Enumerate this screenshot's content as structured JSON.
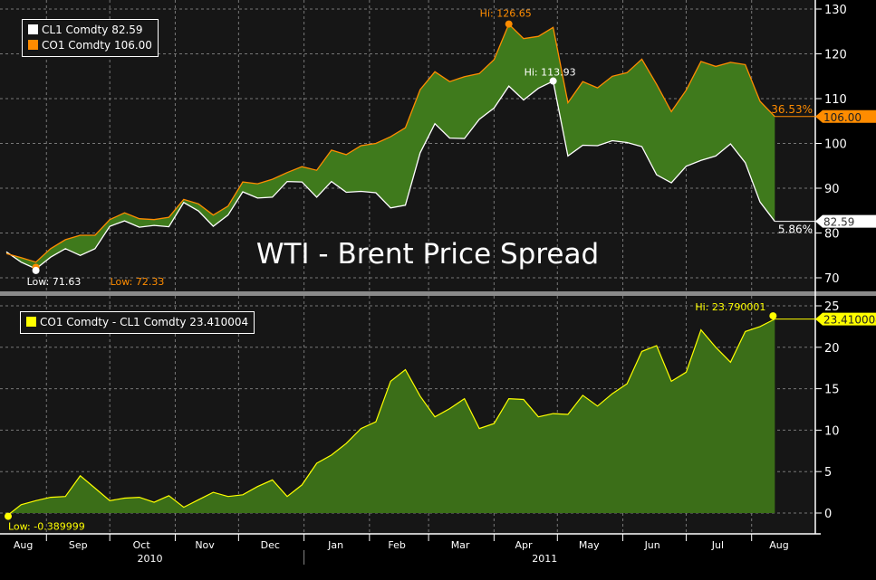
{
  "chart_data": [
    {
      "type": "area",
      "title": "WTI - Brent Price Spread",
      "legend_position": "top-left",
      "yaxis_side": "right",
      "ylim": [
        68,
        132
      ],
      "yticks": [
        70,
        80,
        90,
        100,
        110,
        120,
        130
      ],
      "grid": true,
      "x": [
        "2010-08-13",
        "2010-08-20",
        "2010-08-27",
        "2010-09-03",
        "2010-09-10",
        "2010-09-17",
        "2010-09-24",
        "2010-10-01",
        "2010-10-08",
        "2010-10-15",
        "2010-10-22",
        "2010-10-29",
        "2010-11-05",
        "2010-11-12",
        "2010-11-19",
        "2010-11-26",
        "2010-12-03",
        "2010-12-10",
        "2010-12-17",
        "2010-12-24",
        "2010-12-31",
        "2011-01-07",
        "2011-01-14",
        "2011-01-21",
        "2011-01-28",
        "2011-02-04",
        "2011-02-11",
        "2011-02-18",
        "2011-02-25",
        "2011-03-04",
        "2011-03-11",
        "2011-03-18",
        "2011-03-25",
        "2011-04-01",
        "2011-04-08",
        "2011-04-15",
        "2011-04-22",
        "2011-04-29",
        "2011-05-06",
        "2011-05-13",
        "2011-05-20",
        "2011-05-27",
        "2011-06-03",
        "2011-06-10",
        "2011-06-17",
        "2011-06-24",
        "2011-07-01",
        "2011-07-08",
        "2011-07-15",
        "2011-07-22",
        "2011-07-29",
        "2011-08-05",
        "2011-08-12"
      ],
      "series": [
        {
          "name": "CL1 Comdty",
          "last": "82.59",
          "color": "#ffffff",
          "values": [
            75.8,
            73.5,
            72.0,
            74.6,
            76.5,
            75.0,
            76.5,
            81.5,
            82.7,
            81.3,
            81.7,
            81.4,
            86.8,
            84.9,
            81.5,
            84.0,
            89.2,
            87.8,
            88.0,
            91.5,
            91.4,
            88.0,
            91.5,
            89.1,
            89.3,
            89.0,
            85.6,
            86.2,
            97.9,
            104.4,
            101.2,
            101.1,
            105.4,
            107.9,
            112.8,
            109.7,
            112.3,
            113.9,
            97.2,
            99.6,
            99.5,
            100.6,
            100.2,
            99.3,
            93.0,
            91.2,
            94.9,
            96.2,
            97.2,
            99.9,
            95.7,
            86.9,
            82.59
          ],
          "hi_label": "Hi: 113.93",
          "low_label": "Low: 71.63",
          "change_label": "5.86%"
        },
        {
          "name": "CO1 Comdty",
          "last": "106.00",
          "color": "#ff8c00",
          "values": [
            75.41,
            74.5,
            73.5,
            76.5,
            78.5,
            79.5,
            79.5,
            83.0,
            84.5,
            83.2,
            83.0,
            83.5,
            87.5,
            86.5,
            84.0,
            86.0,
            91.4,
            91.0,
            92.0,
            93.5,
            94.8,
            94.0,
            98.5,
            97.5,
            99.5,
            100.0,
            101.5,
            103.5,
            112.0,
            116.0,
            113.8,
            114.9,
            115.6,
            118.7,
            126.6,
            123.4,
            123.9,
            125.9,
            109.1,
            113.8,
            112.4,
            115.0,
            115.8,
            118.8,
            113.2,
            107.1,
            111.9,
            118.3,
            117.2,
            118.1,
            117.6,
            109.4,
            106.0
          ],
          "hi_label": "Hi: 126.65",
          "low_label": "Low: 72.33",
          "change_label": "36.53%"
        }
      ]
    },
    {
      "type": "area",
      "legend_position": "top-left",
      "yaxis_side": "right",
      "ylim": [
        -2,
        27
      ],
      "yticks": [
        0,
        5,
        10,
        15,
        20,
        25
      ],
      "grid": true,
      "series": [
        {
          "name": "CO1 Comdty - CL1 Comdty",
          "last": "23.410004",
          "color": "#ffff00",
          "values": [
            -0.39,
            1.0,
            1.5,
            1.9,
            2.0,
            4.5,
            3.0,
            1.5,
            1.8,
            1.9,
            1.3,
            2.1,
            0.7,
            1.6,
            2.5,
            2.0,
            2.2,
            3.2,
            4.0,
            2.0,
            3.4,
            6.0,
            7.0,
            8.4,
            10.2,
            11.0,
            15.9,
            17.3,
            14.1,
            11.6,
            12.6,
            13.8,
            10.2,
            10.8,
            13.8,
            13.7,
            11.6,
            12.0,
            11.9,
            14.2,
            12.9,
            14.4,
            15.6,
            19.5,
            20.2,
            15.9,
            17.0,
            22.1,
            20.0,
            18.2,
            21.9,
            22.5,
            23.41
          ],
          "hi_label": "Hi: 23.790001",
          "low_label": "Low: -0.389999"
        }
      ]
    }
  ],
  "xaxis": {
    "months": [
      {
        "label": "Aug",
        "date": "2010-08-21"
      },
      {
        "label": "Sep",
        "date": "2010-09-16"
      },
      {
        "label": "Oct",
        "date": "2010-10-16"
      },
      {
        "label": "Nov",
        "date": "2010-11-15"
      },
      {
        "label": "Dec",
        "date": "2010-12-16"
      },
      {
        "label": "Jan",
        "date": "2011-01-16"
      },
      {
        "label": "Feb",
        "date": "2011-02-14"
      },
      {
        "label": "Mar",
        "date": "2011-03-16"
      },
      {
        "label": "Apr",
        "date": "2011-04-15"
      },
      {
        "label": "May",
        "date": "2011-05-16"
      },
      {
        "label": "Jun",
        "date": "2011-06-15"
      },
      {
        "label": "Jul",
        "date": "2011-07-16"
      },
      {
        "label": "Aug",
        "date": "2011-08-14"
      }
    ],
    "boundaries": [
      "2010-09-01",
      "2010-10-01",
      "2010-11-01",
      "2010-12-01",
      "2011-01-01",
      "2011-02-01",
      "2011-03-01",
      "2011-04-01",
      "2011-05-01",
      "2011-06-01",
      "2011-07-01",
      "2011-08-01"
    ],
    "years": [
      {
        "label": "2010",
        "date": "2010-10-20"
      },
      {
        "label": "2011",
        "date": "2011-04-25"
      }
    ]
  },
  "colors": {
    "fill_top": "#3f7a1c",
    "fill_bottom": "#3b6e18",
    "brent": "#ff8c00",
    "wti": "#ffffff",
    "spread": "#ffff00"
  }
}
